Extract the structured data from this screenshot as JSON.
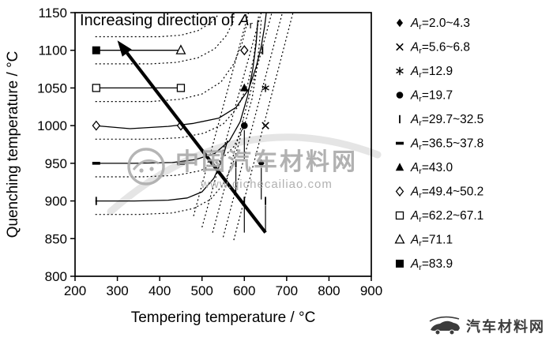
{
  "watermark": {
    "brand": "中国汽车材料网",
    "url": "www.qichecailiao.com"
  },
  "footer": {
    "brand": "汽车材料网"
  },
  "annotation": {
    "text": "Increasing direction of ",
    "variable": "A",
    "subscript": "r"
  },
  "chart_data": {
    "type": "scatter",
    "title": "",
    "xlabel": "Tempering temperature / °C",
    "ylabel": "Quenching temperature / °C",
    "xlim": [
      200,
      900
    ],
    "ylim": [
      800,
      1150
    ],
    "xticks": [
      200,
      300,
      400,
      500,
      600,
      700,
      800,
      900
    ],
    "yticks": [
      800,
      850,
      900,
      950,
      1000,
      1050,
      1100,
      1150
    ],
    "grid": false,
    "legend_position": "right",
    "legend_variable": {
      "symbol": "A",
      "subscript": "r"
    },
    "series": [
      {
        "name": "Ar=2.0~4.3",
        "ar": "2.0~4.3",
        "marker": "diamond-filled",
        "points": [
          [
            640,
            950
          ]
        ]
      },
      {
        "name": "Ar=5.6~6.8",
        "ar": "5.6~6.8",
        "marker": "x",
        "points": [
          [
            650,
            1000
          ]
        ]
      },
      {
        "name": "Ar=12.9",
        "ar": "12.9",
        "marker": "asterisk",
        "points": [
          [
            650,
            1050
          ]
        ]
      },
      {
        "name": "Ar=19.7",
        "ar": "19.7",
        "marker": "circle-filled",
        "points": [
          [
            600,
            1000
          ]
        ]
      },
      {
        "name": "Ar=29.7~32.5",
        "ar": "29.7~32.5",
        "marker": "vbar",
        "points": [
          [
            250,
            900
          ],
          [
            580,
            950
          ],
          [
            600,
            900
          ],
          [
            650,
            900
          ],
          [
            643,
            1100
          ]
        ]
      },
      {
        "name": "Ar=36.5~37.8",
        "ar": "36.5~37.8",
        "marker": "hbar",
        "points": [
          [
            250,
            950
          ],
          [
            450,
            950
          ]
        ]
      },
      {
        "name": "Ar=43.0",
        "ar": "43.0",
        "marker": "triangle-filled",
        "points": [
          [
            600,
            1050
          ]
        ]
      },
      {
        "name": "Ar=49.4~50.2",
        "ar": "49.4~50.2",
        "marker": "diamond-open",
        "points": [
          [
            250,
            1000
          ],
          [
            450,
            1000
          ],
          [
            600,
            1100
          ]
        ]
      },
      {
        "name": "Ar=62.2~67.1",
        "ar": "62.2~67.1",
        "marker": "square-open",
        "points": [
          [
            250,
            1050
          ],
          [
            450,
            1050
          ]
        ]
      },
      {
        "name": "Ar=71.1",
        "ar": "71.1",
        "marker": "triangle-open",
        "points": [
          [
            450,
            1100
          ]
        ]
      },
      {
        "name": "Ar=83.9",
        "ar": "83.9",
        "marker": "square-filled",
        "points": [
          [
            250,
            1100
          ]
        ]
      }
    ],
    "curves": {
      "solid": [
        [
          [
            248,
            1100
          ],
          [
            452,
            1100
          ]
        ],
        [
          [
            248,
            1050
          ],
          [
            452,
            1050
          ]
        ],
        [
          [
            245,
            1000
          ],
          [
            330,
            996
          ],
          [
            420,
            999
          ],
          [
            480,
            1003
          ],
          [
            540,
            1010
          ],
          [
            580,
            1024
          ],
          [
            610,
            1048
          ],
          [
            628,
            1078
          ],
          [
            640,
            1105
          ],
          [
            648,
            1132
          ],
          [
            652,
            1150
          ]
        ],
        [
          [
            248,
            950
          ],
          [
            340,
            950
          ],
          [
            430,
            951
          ],
          [
            485,
            955
          ],
          [
            530,
            963
          ],
          [
            565,
            980
          ],
          [
            590,
            1005
          ],
          [
            608,
            1040
          ],
          [
            620,
            1075
          ],
          [
            628,
            1110
          ],
          [
            632,
            1140
          ]
        ],
        [
          [
            248,
            900
          ],
          [
            340,
            900
          ],
          [
            420,
            901
          ],
          [
            465,
            904
          ],
          [
            500,
            912
          ],
          [
            528,
            930
          ],
          [
            548,
            955
          ],
          [
            560,
            980
          ]
        ]
      ],
      "dotted": [
        [
          [
            248,
            1118
          ],
          [
            400,
            1118
          ],
          [
            450,
            1120
          ],
          [
            490,
            1126
          ],
          [
            520,
            1136
          ],
          [
            540,
            1148
          ]
        ],
        [
          [
            248,
            1082
          ],
          [
            380,
            1082
          ],
          [
            440,
            1084
          ],
          [
            490,
            1090
          ],
          [
            530,
            1102
          ],
          [
            558,
            1120
          ],
          [
            575,
            1140
          ]
        ],
        [
          [
            248,
            1032
          ],
          [
            380,
            1032
          ],
          [
            450,
            1035
          ],
          [
            500,
            1042
          ],
          [
            545,
            1058
          ],
          [
            575,
            1082
          ],
          [
            595,
            1110
          ],
          [
            608,
            1140
          ]
        ],
        [
          [
            248,
            982
          ],
          [
            380,
            982
          ],
          [
            450,
            984
          ],
          [
            505,
            990
          ],
          [
            550,
            1002
          ],
          [
            585,
            1025
          ],
          [
            608,
            1055
          ],
          [
            622,
            1090
          ],
          [
            630,
            1125
          ],
          [
            634,
            1148
          ]
        ],
        [
          [
            248,
            932
          ],
          [
            360,
            932
          ],
          [
            440,
            934
          ],
          [
            495,
            940
          ],
          [
            540,
            952
          ],
          [
            575,
            972
          ],
          [
            600,
            1000
          ],
          [
            618,
            1035
          ],
          [
            628,
            1070
          ],
          [
            635,
            1105
          ],
          [
            640,
            1140
          ]
        ],
        [
          [
            248,
            882
          ],
          [
            350,
            882
          ],
          [
            430,
            884
          ],
          [
            480,
            890
          ],
          [
            520,
            902
          ],
          [
            550,
            922
          ],
          [
            572,
            948
          ],
          [
            588,
            978
          ],
          [
            598,
            1008
          ]
        ]
      ],
      "diagonal_dotted": [
        [
          [
            480,
            880
          ],
          [
            610,
            1150
          ]
        ],
        [
          [
            500,
            865
          ],
          [
            640,
            1150
          ]
        ],
        [
          [
            525,
            858
          ],
          [
            665,
            1150
          ]
        ],
        [
          [
            550,
            852
          ],
          [
            690,
            1150
          ]
        ],
        [
          [
            575,
            848
          ],
          [
            715,
            1150
          ]
        ]
      ]
    },
    "drop_lines": [
      [
        640,
        944,
        902
      ],
      [
        580,
        944,
        910
      ],
      [
        600,
        894,
        858
      ],
      [
        650,
        894,
        860
      ],
      [
        600,
        994,
        956
      ]
    ],
    "arrow": {
      "from": [
        650,
        858
      ],
      "to": [
        300,
        1113
      ]
    }
  }
}
